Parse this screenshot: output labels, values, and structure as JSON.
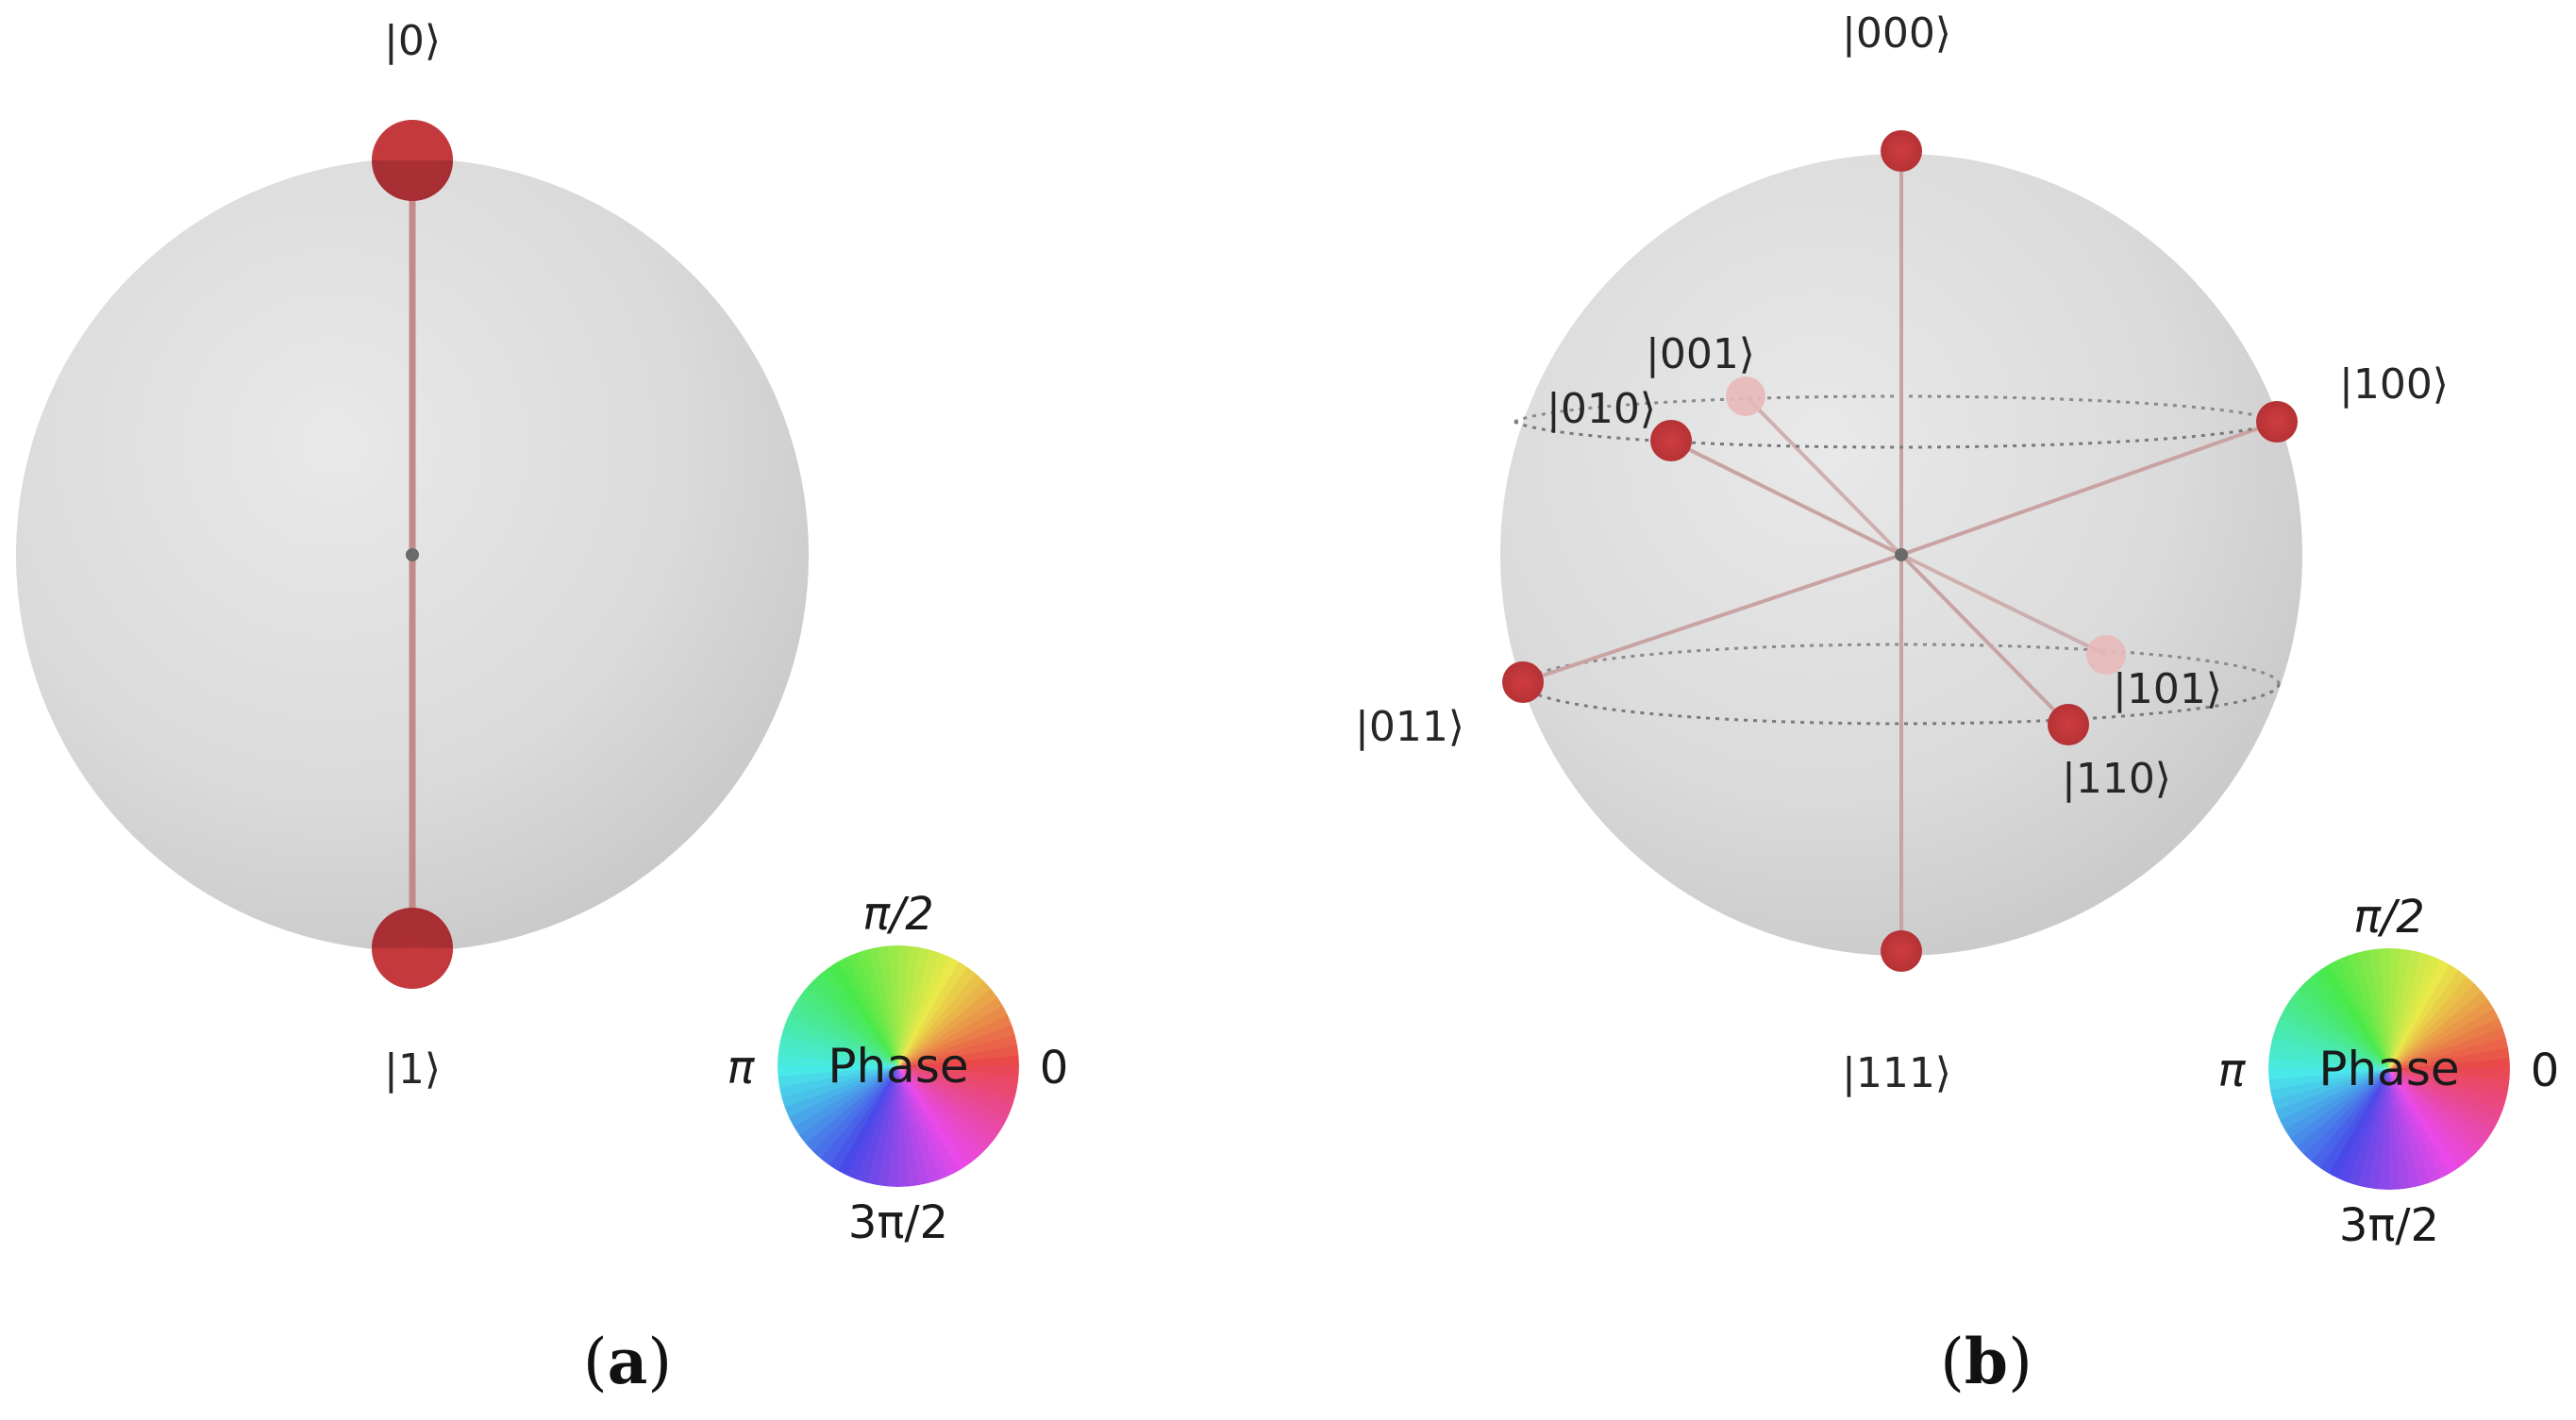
{
  "panels": [
    {
      "caption_letter": "a",
      "states": [
        {
          "label": "|0⟩",
          "theta": 0,
          "phi": 0,
          "size": "large",
          "faded": false
        },
        {
          "label": "|1⟩",
          "theta": 180,
          "phi": 0,
          "size": "large",
          "faded": false
        }
      ],
      "phase_wheel": {
        "top": "π/2",
        "left": "π",
        "right": "0",
        "bottom": "3π/2",
        "center": "Phase"
      }
    },
    {
      "caption_letter": "b",
      "states": [
        {
          "label": "|000⟩",
          "theta": 0,
          "faded": false
        },
        {
          "label": "|001⟩",
          "theta": 60,
          "faded": true
        },
        {
          "label": "|010⟩",
          "theta": 60,
          "faded": false
        },
        {
          "label": "|100⟩",
          "theta": 60,
          "faded": false
        },
        {
          "label": "|011⟩",
          "theta": 120,
          "faded": false
        },
        {
          "label": "|101⟩",
          "theta": 120,
          "faded": true
        },
        {
          "label": "|110⟩",
          "theta": 120,
          "faded": false
        },
        {
          "label": "|111⟩",
          "theta": 180,
          "faded": false
        }
      ],
      "latitude_rings": [
        "upper",
        "lower"
      ],
      "phase_wheel": {
        "top": "π/2",
        "left": "π",
        "right": "0",
        "bottom": "3π/2",
        "center": "Phase"
      }
    }
  ],
  "colors": {
    "state_marker": "#c2373a",
    "state_marker_faded": "#e7b8b8",
    "state_line": "#c48a8a",
    "sphere_light": "#e6e6e6",
    "sphere_dark": "#c3c3c3",
    "center_dot": "#6a6a6a"
  }
}
